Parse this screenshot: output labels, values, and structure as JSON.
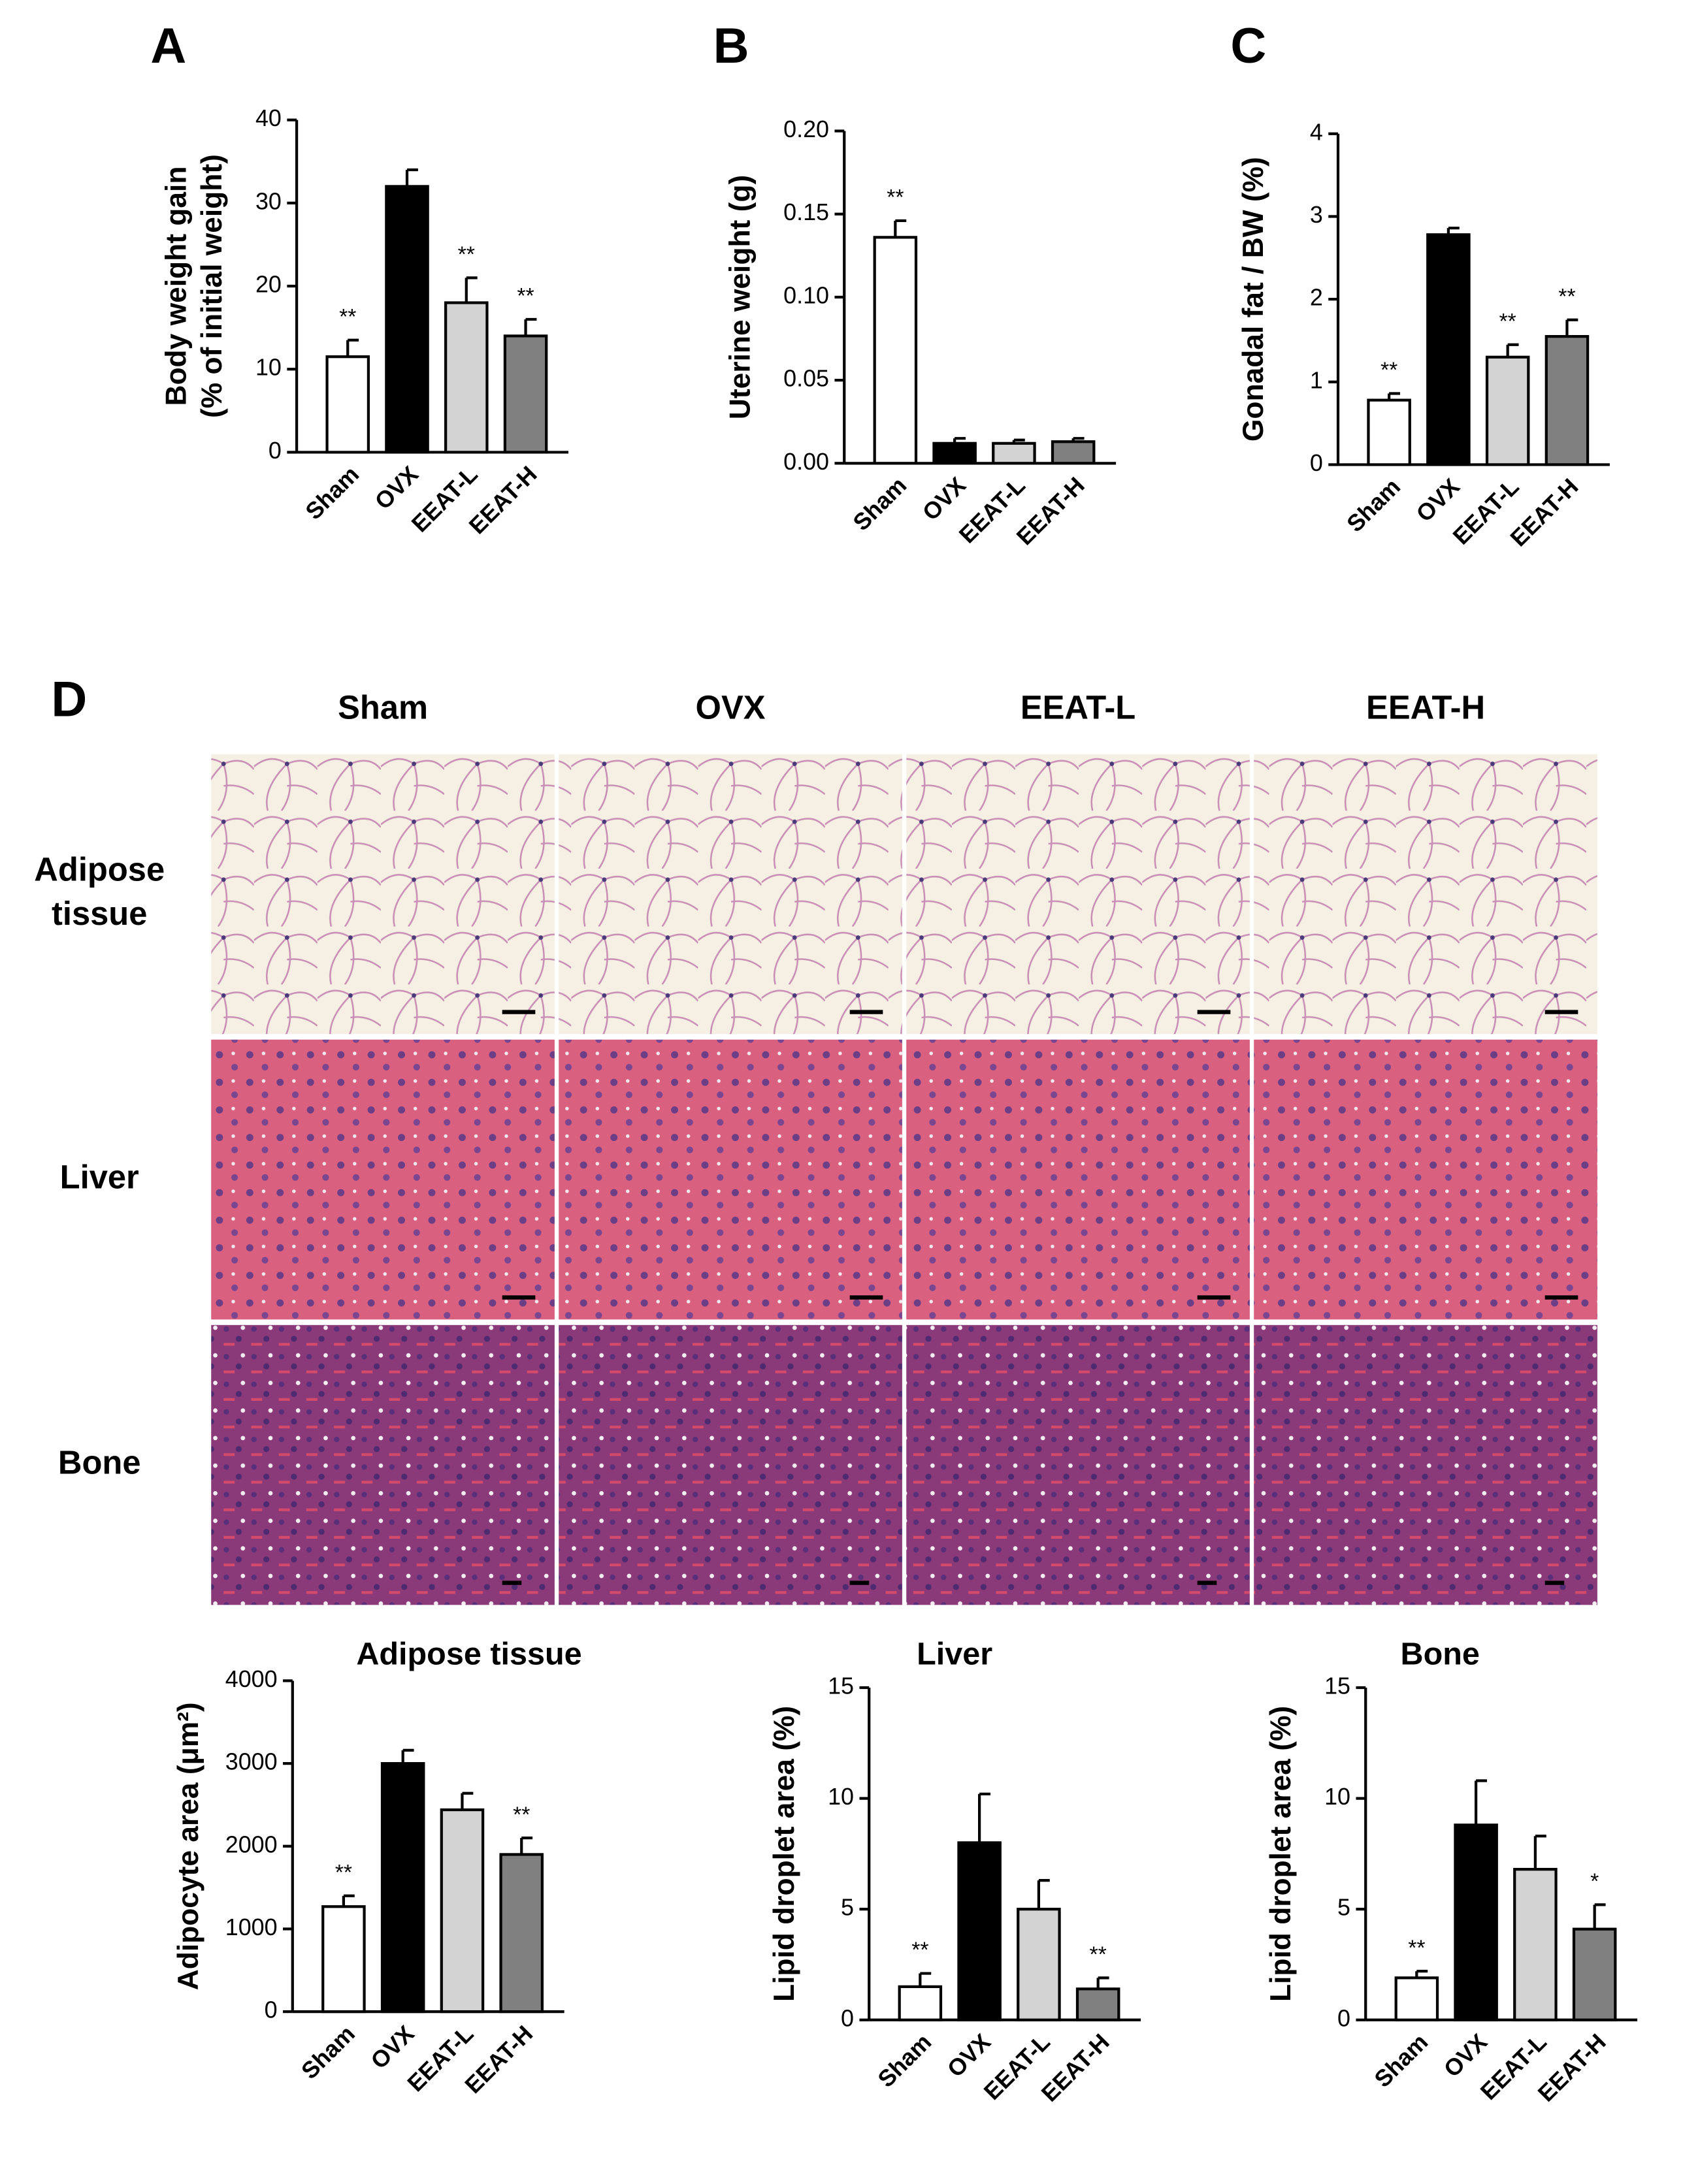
{
  "chart_data": [
    {
      "type": "bar",
      "panel_label": "A",
      "ylabel": [
        "Body weight gain",
        "(% of initial weight)"
      ],
      "categories": [
        "Sham",
        "OVX",
        "EEAT-L",
        "EEAT-H"
      ],
      "values": [
        11.5,
        32,
        18,
        14
      ],
      "errors": [
        2,
        2,
        3,
        2
      ],
      "annotations": [
        "**",
        null,
        "**",
        "**"
      ],
      "colors": [
        "#ffffff",
        "#000000",
        "#d3d3d3",
        "#808080"
      ],
      "ylim": [
        0,
        40
      ],
      "yticks": [
        0,
        10,
        20,
        30,
        40
      ]
    },
    {
      "type": "bar",
      "panel_label": "B",
      "ylabel": [
        "Uterine weight (g)"
      ],
      "categories": [
        "Sham",
        "OVX",
        "EEAT-L",
        "EEAT-H"
      ],
      "values": [
        0.136,
        0.012,
        0.012,
        0.013
      ],
      "errors": [
        0.01,
        0.003,
        0.002,
        0.002
      ],
      "annotations": [
        "**",
        null,
        null,
        null
      ],
      "colors": [
        "#ffffff",
        "#000000",
        "#d3d3d3",
        "#808080"
      ],
      "ylim": [
        0,
        0.2
      ],
      "yticks": [
        {
          "value": 0,
          "label": "0.00"
        },
        {
          "value": 0.05,
          "label": "0.05"
        },
        {
          "value": 0.1,
          "label": "0.10"
        },
        {
          "value": 0.15,
          "label": "0.15"
        },
        {
          "value": 0.2,
          "label": "0.20"
        }
      ]
    },
    {
      "type": "bar",
      "panel_label": "C",
      "ylabel": [
        "Gonadal fat / BW (%)"
      ],
      "categories": [
        "Sham",
        "OVX",
        "EEAT-L",
        "EEAT-H"
      ],
      "values": [
        0.78,
        2.78,
        1.3,
        1.55
      ],
      "errors": [
        0.08,
        0.08,
        0.15,
        0.2
      ],
      "annotations": [
        "**",
        null,
        "**",
        "**"
      ],
      "colors": [
        "#ffffff",
        "#000000",
        "#d3d3d3",
        "#808080"
      ],
      "ylim": [
        0,
        4
      ],
      "yticks": [
        0,
        1,
        2,
        3,
        4
      ]
    },
    {
      "type": "bar",
      "title": "Adipose tissue",
      "ylabel": [
        "Adipocyte area (μm²)"
      ],
      "categories": [
        "Sham",
        "OVX",
        "EEAT-L",
        "EEAT-H"
      ],
      "values": [
        1270,
        3000,
        2440,
        1900
      ],
      "errors": [
        130,
        160,
        200,
        200
      ],
      "annotations": [
        "**",
        null,
        null,
        "**"
      ],
      "colors": [
        "#ffffff",
        "#000000",
        "#d3d3d3",
        "#808080"
      ],
      "ylim": [
        0,
        4000
      ],
      "yticks": [
        0,
        1000,
        2000,
        3000,
        4000
      ]
    },
    {
      "type": "bar",
      "title": "Liver",
      "ylabel": [
        "Lipid droplet area (%)"
      ],
      "categories": [
        "Sham",
        "OVX",
        "EEAT-L",
        "EEAT-H"
      ],
      "values": [
        1.5,
        8,
        5,
        1.4
      ],
      "errors": [
        0.6,
        2.2,
        1.3,
        0.5
      ],
      "annotations": [
        "**",
        null,
        null,
        "**"
      ],
      "colors": [
        "#ffffff",
        "#000000",
        "#d3d3d3",
        "#808080"
      ],
      "ylim": [
        0,
        15
      ],
      "yticks": [
        0,
        5,
        10,
        15
      ]
    },
    {
      "type": "bar",
      "title": "Bone",
      "ylabel": [
        "Lipid droplet area (%)"
      ],
      "categories": [
        "Sham",
        "OVX",
        "EEAT-L",
        "EEAT-H"
      ],
      "values": [
        1.9,
        8.8,
        6.8,
        4.1
      ],
      "errors": [
        0.3,
        2,
        1.5,
        1.1
      ],
      "annotations": [
        "**",
        null,
        null,
        "*"
      ],
      "colors": [
        "#ffffff",
        "#000000",
        "#d3d3d3",
        "#808080"
      ],
      "ylim": [
        0,
        15
      ],
      "yticks": [
        0,
        5,
        10,
        15
      ]
    }
  ],
  "histology": {
    "panel_label": "D",
    "columns": [
      "Sham",
      "OVX",
      "EEAT-L",
      "EEAT-H"
    ],
    "rows": [
      [
        "Adipose",
        "tissue"
      ],
      [
        "Liver"
      ],
      [
        "Bone"
      ]
    ]
  }
}
